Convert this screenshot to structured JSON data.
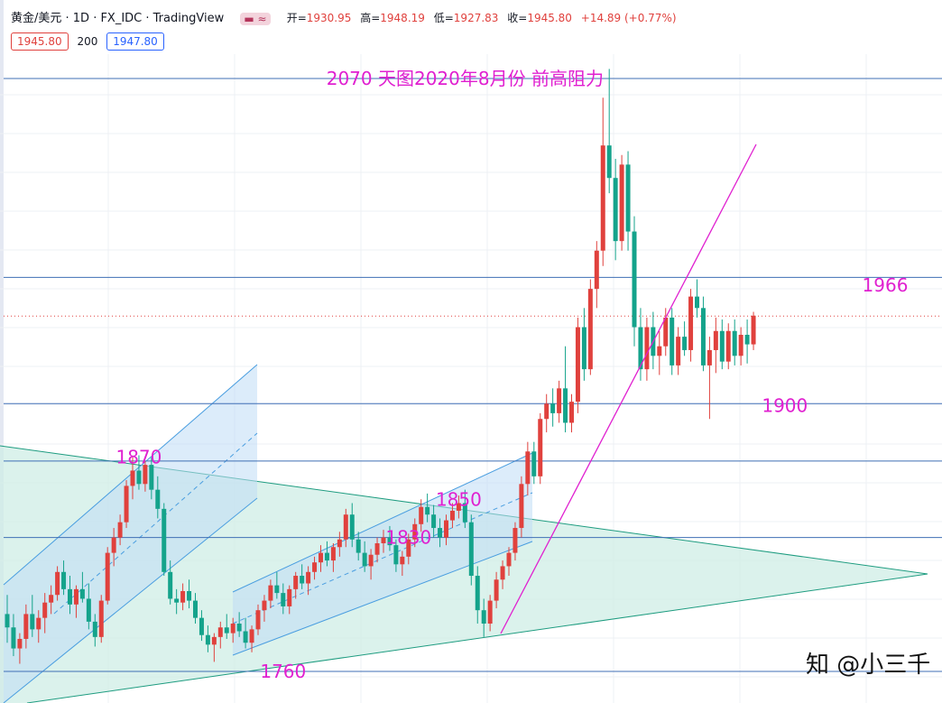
{
  "legend": {
    "symbol": "黄金/美元 · 1D · FX_IDC · TradingView",
    "indicator_icon": "≈",
    "open_label": "开=",
    "open": "1930.95",
    "high_label": "高=",
    "high": "1948.19",
    "low_label": "低=",
    "low": "1927.83",
    "close_label": "收=",
    "close": "1945.80",
    "change": "+14.89 (+0.77%)",
    "price_box_1": "1945.80",
    "ma_period": "200",
    "price_box_2": "1947.80"
  },
  "watermark": "知 @小三千",
  "colors": {
    "up": "#e0413d",
    "down": "#14a38b",
    "level": "#3f6fb5",
    "annotation": "#e020d0",
    "channel_fill": "#bfdcf5",
    "channel_line": "#4a9ee0",
    "triangle_fill": "#cfeee5",
    "triangle_line": "#1e9c80"
  },
  "chart_data": {
    "type": "candlestick",
    "title": "",
    "price_range": [
      1740,
      2090
    ],
    "horizontal_levels": [
      2070,
      1966,
      1900,
      1870,
      1830,
      1760
    ],
    "current_price_line": 1945.8,
    "annotations": [
      {
        "text": "2070 天图2020年8月份 前高阻力",
        "price": 2070,
        "bar": 73
      },
      {
        "text": "1966",
        "price": 1962,
        "bar": 140
      },
      {
        "text": "1900",
        "price": 1899,
        "bar": 124
      },
      {
        "text": "1870",
        "price": 1872,
        "bar": 21
      },
      {
        "text": "1850",
        "price": 1850,
        "bar": 72
      },
      {
        "text": "1830",
        "price": 1830,
        "bar": 64
      },
      {
        "text": "1760",
        "price": 1760,
        "bar": 44
      }
    ],
    "candles": [
      [
        1790,
        1800,
        1775,
        1783
      ],
      [
        1783,
        1790,
        1768,
        1772
      ],
      [
        1772,
        1780,
        1764,
        1777
      ],
      [
        1777,
        1795,
        1772,
        1790
      ],
      [
        1790,
        1800,
        1778,
        1782
      ],
      [
        1782,
        1792,
        1775,
        1788
      ],
      [
        1788,
        1801,
        1780,
        1796
      ],
      [
        1796,
        1805,
        1790,
        1800
      ],
      [
        1800,
        1815,
        1797,
        1812
      ],
      [
        1812,
        1818,
        1800,
        1803
      ],
      [
        1803,
        1810,
        1790,
        1795
      ],
      [
        1795,
        1805,
        1788,
        1803
      ],
      [
        1803,
        1812,
        1796,
        1798
      ],
      [
        1798,
        1806,
        1782,
        1786
      ],
      [
        1786,
        1790,
        1773,
        1778
      ],
      [
        1778,
        1800,
        1775,
        1797
      ],
      [
        1797,
        1825,
        1795,
        1822
      ],
      [
        1822,
        1835,
        1815,
        1830
      ],
      [
        1830,
        1842,
        1826,
        1838
      ],
      [
        1838,
        1860,
        1835,
        1857
      ],
      [
        1857,
        1872,
        1850,
        1865
      ],
      [
        1865,
        1873,
        1855,
        1858
      ],
      [
        1858,
        1870,
        1854,
        1868
      ],
      [
        1868,
        1872,
        1850,
        1855
      ],
      [
        1855,
        1862,
        1840,
        1845
      ],
      [
        1845,
        1848,
        1810,
        1812
      ],
      [
        1812,
        1818,
        1795,
        1798
      ],
      [
        1798,
        1803,
        1790,
        1796
      ],
      [
        1796,
        1806,
        1792,
        1802
      ],
      [
        1802,
        1808,
        1793,
        1797
      ],
      [
        1797,
        1801,
        1785,
        1788
      ],
      [
        1788,
        1792,
        1776,
        1779
      ],
      [
        1779,
        1784,
        1770,
        1774
      ],
      [
        1774,
        1780,
        1765,
        1778
      ],
      [
        1778,
        1786,
        1772,
        1783
      ],
      [
        1783,
        1790,
        1777,
        1780
      ],
      [
        1780,
        1788,
        1775,
        1785
      ],
      [
        1785,
        1791,
        1778,
        1781
      ],
      [
        1781,
        1788,
        1772,
        1775
      ],
      [
        1775,
        1784,
        1770,
        1782
      ],
      [
        1782,
        1795,
        1779,
        1792
      ],
      [
        1792,
        1800,
        1786,
        1797
      ],
      [
        1797,
        1808,
        1793,
        1805
      ],
      [
        1805,
        1812,
        1798,
        1801
      ],
      [
        1801,
        1806,
        1790,
        1794
      ],
      [
        1794,
        1805,
        1790,
        1803
      ],
      [
        1803,
        1812,
        1798,
        1810
      ],
      [
        1810,
        1816,
        1803,
        1806
      ],
      [
        1806,
        1815,
        1800,
        1812
      ],
      [
        1812,
        1820,
        1808,
        1817
      ],
      [
        1817,
        1826,
        1812,
        1822
      ],
      [
        1822,
        1828,
        1815,
        1818
      ],
      [
        1818,
        1827,
        1812,
        1825
      ],
      [
        1825,
        1833,
        1820,
        1829
      ],
      [
        1829,
        1845,
        1825,
        1842
      ],
      [
        1842,
        1848,
        1825,
        1829
      ],
      [
        1829,
        1833,
        1818,
        1822
      ],
      [
        1822,
        1828,
        1812,
        1815
      ],
      [
        1815,
        1824,
        1808,
        1821
      ],
      [
        1821,
        1830,
        1817,
        1827
      ],
      [
        1827,
        1834,
        1822,
        1830
      ],
      [
        1830,
        1836,
        1823,
        1826
      ],
      [
        1826,
        1829,
        1812,
        1816
      ],
      [
        1816,
        1823,
        1810,
        1820
      ],
      [
        1820,
        1832,
        1816,
        1829
      ],
      [
        1829,
        1840,
        1825,
        1837
      ],
      [
        1837,
        1850,
        1833,
        1846
      ],
      [
        1846,
        1853,
        1838,
        1842
      ],
      [
        1842,
        1847,
        1830,
        1835
      ],
      [
        1835,
        1840,
        1825,
        1830
      ],
      [
        1830,
        1842,
        1826,
        1839
      ],
      [
        1839,
        1848,
        1835,
        1844
      ],
      [
        1844,
        1852,
        1840,
        1848
      ],
      [
        1848,
        1855,
        1835,
        1838
      ],
      [
        1838,
        1842,
        1805,
        1810
      ],
      [
        1810,
        1815,
        1785,
        1792
      ],
      [
        1792,
        1798,
        1778,
        1785
      ],
      [
        1785,
        1800,
        1781,
        1797
      ],
      [
        1797,
        1812,
        1793,
        1808
      ],
      [
        1808,
        1818,
        1803,
        1815
      ],
      [
        1815,
        1825,
        1810,
        1822
      ],
      [
        1822,
        1838,
        1818,
        1835
      ],
      [
        1835,
        1862,
        1830,
        1858
      ],
      [
        1858,
        1880,
        1852,
        1875
      ],
      [
        1875,
        1880,
        1858,
        1862
      ],
      [
        1862,
        1895,
        1858,
        1892
      ],
      [
        1892,
        1905,
        1885,
        1900
      ],
      [
        1900,
        1908,
        1888,
        1895
      ],
      [
        1895,
        1912,
        1890,
        1908
      ],
      [
        1908,
        1930,
        1885,
        1890
      ],
      [
        1890,
        1905,
        1885,
        1901
      ],
      [
        1901,
        1945,
        1895,
        1940
      ],
      [
        1940,
        1950,
        1912,
        1918
      ],
      [
        1918,
        1965,
        1915,
        1960
      ],
      [
        1960,
        1985,
        1950,
        1980
      ],
      [
        1980,
        2060,
        1972,
        2035
      ],
      [
        2035,
        2075,
        2010,
        2018
      ],
      [
        2018,
        2028,
        1975,
        1985
      ],
      [
        1985,
        2030,
        1980,
        2025
      ],
      [
        2025,
        2032,
        1980,
        1990
      ],
      [
        1990,
        1998,
        1930,
        1940
      ],
      [
        1940,
        1950,
        1912,
        1918
      ],
      [
        1918,
        1945,
        1912,
        1940
      ],
      [
        1940,
        1948,
        1918,
        1925
      ],
      [
        1925,
        1938,
        1915,
        1930
      ],
      [
        1930,
        1950,
        1925,
        1945
      ],
      [
        1945,
        1950,
        1915,
        1920
      ],
      [
        1920,
        1940,
        1915,
        1935
      ],
      [
        1935,
        1943,
        1925,
        1928
      ],
      [
        1928,
        1960,
        1922,
        1956
      ],
      [
        1956,
        1965,
        1945,
        1950
      ],
      [
        1950,
        1956,
        1917,
        1920
      ],
      [
        1920,
        1935,
        1892,
        1928
      ],
      [
        1928,
        1945,
        1916,
        1938
      ],
      [
        1938,
        1944,
        1918,
        1922
      ],
      [
        1922,
        1942,
        1918,
        1938
      ],
      [
        1938,
        1944,
        1920,
        1925
      ],
      [
        1925,
        1940,
        1920,
        1936
      ],
      [
        1936,
        1944,
        1921,
        1931
      ],
      [
        1931,
        1948,
        1928,
        1946
      ]
    ]
  }
}
